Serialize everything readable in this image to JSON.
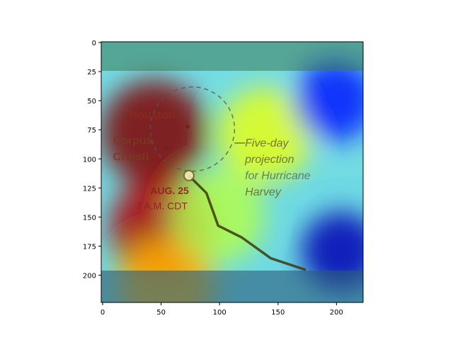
{
  "chart_data": {
    "type": "heatmap",
    "title": "",
    "xlabel": "",
    "ylabel": "",
    "image_width": 224,
    "image_height": 224,
    "xlim": [
      0,
      224
    ],
    "ylim": [
      224,
      0
    ],
    "x_ticks": [
      0,
      50,
      100,
      150,
      200
    ],
    "y_ticks": [
      0,
      25,
      50,
      75,
      100,
      125,
      150,
      175,
      200
    ],
    "grid": false,
    "colormap": "jet",
    "overlay_alpha": 0.5,
    "heat_spots": [
      {
        "x": 45,
        "y": 78,
        "intensity": 1.0
      },
      {
        "x": 52,
        "y": 160,
        "intensity": 0.95
      },
      {
        "x": 55,
        "y": 210,
        "intensity": 0.7
      },
      {
        "x": 100,
        "y": 150,
        "intensity": 0.55
      },
      {
        "x": 140,
        "y": 80,
        "intensity": 0.6
      },
      {
        "x": 200,
        "y": 50,
        "intensity": 0.15
      },
      {
        "x": 205,
        "y": 180,
        "intensity": 0.05
      }
    ],
    "annotations": {
      "city_1": "Houston",
      "city_2_line1": "Corpus",
      "city_2_line2": "Christi",
      "date": "AUG. 25",
      "time": "7 A.M. CDT",
      "label_line1": "Five-day",
      "label_line2": "projection",
      "label_line3": "for Hurricane",
      "label_line4": "Harvey"
    },
    "track": [
      {
        "x": 75,
        "y": 115
      },
      {
        "x": 90,
        "y": 130
      },
      {
        "x": 100,
        "y": 158
      },
      {
        "x": 120,
        "y": 168
      },
      {
        "x": 145,
        "y": 186
      },
      {
        "x": 175,
        "y": 196
      }
    ],
    "cone_center": {
      "x": 78,
      "y": 75
    },
    "cone_radius": 36,
    "city_points": [
      {
        "x": 74,
        "y": 73
      },
      {
        "x": 56,
        "y": 92
      }
    ]
  }
}
